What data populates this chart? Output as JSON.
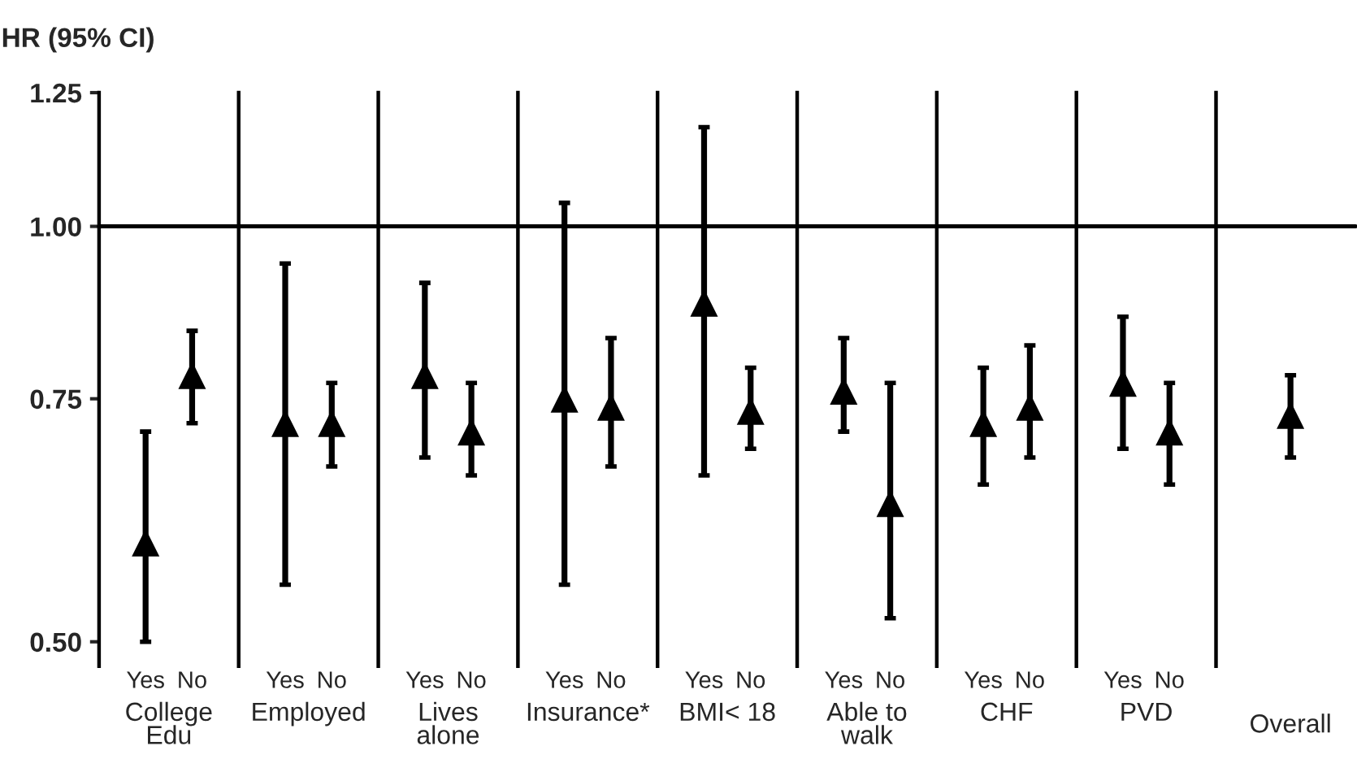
{
  "chart_data": [
    {
      "type": "scatter",
      "ylabel": "HR (95% CI)",
      "xlabel": "College\nEdu",
      "categories": [
        "Yes",
        "No"
      ],
      "log": true,
      "ylim": [
        0.48,
        1.25
      ],
      "yticks": [
        {
          "value": 0.5,
          "label": "0.50"
        },
        0.75,
        {
          "value": 1.0,
          "label": "1.00"
        },
        1.25
      ],
      "marker": "triangle",
      "ref_lines": [
        {
          "axis": "y",
          "value": 1.0,
          "color": "#000000"
        }
      ],
      "series": [
        {
          "color": "#000000",
          "values": [
            0.59,
            0.78
          ],
          "errors": [
            [
              0.5,
              0.71
            ],
            [
              0.72,
              0.84
            ]
          ]
        }
      ]
    },
    {
      "type": "scatter",
      "xlabel": "Employed",
      "categories": [
        "Yes",
        "No"
      ],
      "log": true,
      "ylim": [
        0.48,
        1.25
      ],
      "tick_labels": "x",
      "marker": "triangle",
      "ref_lines": [
        {
          "axis": "y",
          "value": 1.0,
          "color": "#000000"
        }
      ],
      "series": [
        {
          "color": "#000000",
          "values": [
            0.72,
            0.72
          ],
          "errors": [
            [
              0.55,
              0.94
            ],
            [
              0.67,
              0.77
            ]
          ]
        }
      ]
    },
    {
      "type": "scatter",
      "xlabel": "Lives\nalone",
      "categories": [
        "Yes",
        "No"
      ],
      "log": true,
      "ylim": [
        0.48,
        1.25
      ],
      "tick_labels": "x",
      "marker": "triangle",
      "ref_lines": [
        {
          "axis": "y",
          "value": 1.0,
          "color": "#000000"
        }
      ],
      "series": [
        {
          "color": "#000000",
          "values": [
            0.78,
            0.71
          ],
          "errors": [
            [
              0.68,
              0.91
            ],
            [
              0.66,
              0.77
            ]
          ]
        }
      ]
    },
    {
      "type": "scatter",
      "xlabel": "Insurance*",
      "categories": [
        "Yes",
        "No"
      ],
      "log": true,
      "ylim": [
        0.48,
        1.25
      ],
      "tick_labels": "x",
      "marker": "triangle",
      "ref_lines": [
        {
          "axis": "y",
          "value": 1.0,
          "color": "#000000"
        }
      ],
      "series": [
        {
          "color": "#000000",
          "values": [
            0.75,
            0.74
          ],
          "errors": [
            [
              0.55,
              1.04
            ],
            [
              0.67,
              0.83
            ]
          ]
        }
      ]
    },
    {
      "type": "scatter",
      "xlabel": "BMI< 18",
      "categories": [
        "Yes",
        "No"
      ],
      "log": true,
      "ylim": [
        0.48,
        1.25
      ],
      "tick_labels": "x",
      "marker": "triangle",
      "ref_lines": [
        {
          "axis": "y",
          "value": 1.0,
          "color": "#000000"
        }
      ],
      "series": [
        {
          "color": "#000000",
          "values": [
            0.88,
            0.735
          ],
          "errors": [
            [
              0.66,
              1.18
            ],
            [
              0.69,
              0.79
            ]
          ]
        }
      ]
    },
    {
      "type": "scatter",
      "xlabel": "Able to\nwalk",
      "categories": [
        "Yes",
        "No"
      ],
      "log": true,
      "ylim": [
        0.48,
        1.25
      ],
      "tick_labels": "x",
      "marker": "triangle",
      "ref_lines": [
        {
          "axis": "y",
          "value": 1.0,
          "color": "#000000"
        }
      ],
      "series": [
        {
          "color": "#000000",
          "values": [
            0.76,
            0.63
          ],
          "errors": [
            [
              0.71,
              0.83
            ],
            [
              0.52,
              0.77
            ]
          ]
        }
      ]
    },
    {
      "type": "scatter",
      "xlabel": "CHF",
      "categories": [
        "Yes",
        "No"
      ],
      "log": true,
      "ylim": [
        0.48,
        1.25
      ],
      "tick_labels": "x",
      "marker": "triangle",
      "ref_lines": [
        {
          "axis": "y",
          "value": 1.0,
          "color": "#000000"
        }
      ],
      "series": [
        {
          "color": "#000000",
          "values": [
            0.72,
            0.74
          ],
          "errors": [
            [
              0.65,
              0.79
            ],
            [
              0.68,
              0.82
            ]
          ]
        }
      ]
    },
    {
      "type": "scatter",
      "xlabel": "PVD",
      "categories": [
        "Yes",
        "No"
      ],
      "log": true,
      "ylim": [
        0.48,
        1.25
      ],
      "tick_labels": "x",
      "marker": "triangle",
      "ref_lines": [
        {
          "axis": "y",
          "value": 1.0,
          "color": "#000000"
        }
      ],
      "series": [
        {
          "color": "#000000",
          "values": [
            0.77,
            0.71
          ],
          "errors": [
            [
              0.69,
              0.86
            ],
            [
              0.65,
              0.77
            ]
          ]
        }
      ]
    },
    {
      "type": "scatter",
      "categories": [
        "Overall"
      ],
      "log": true,
      "ylim": [
        0.48,
        1.25
      ],
      "tick_labels": "x",
      "marker": "triangle",
      "ref_lines": [
        {
          "axis": "y",
          "value": 1.0,
          "color": "#000000"
        }
      ],
      "series": [
        {
          "color": "#000000",
          "values": [
            0.73
          ],
          "errors": [
            [
              0.68,
              0.78
            ]
          ]
        }
      ]
    }
  ]
}
